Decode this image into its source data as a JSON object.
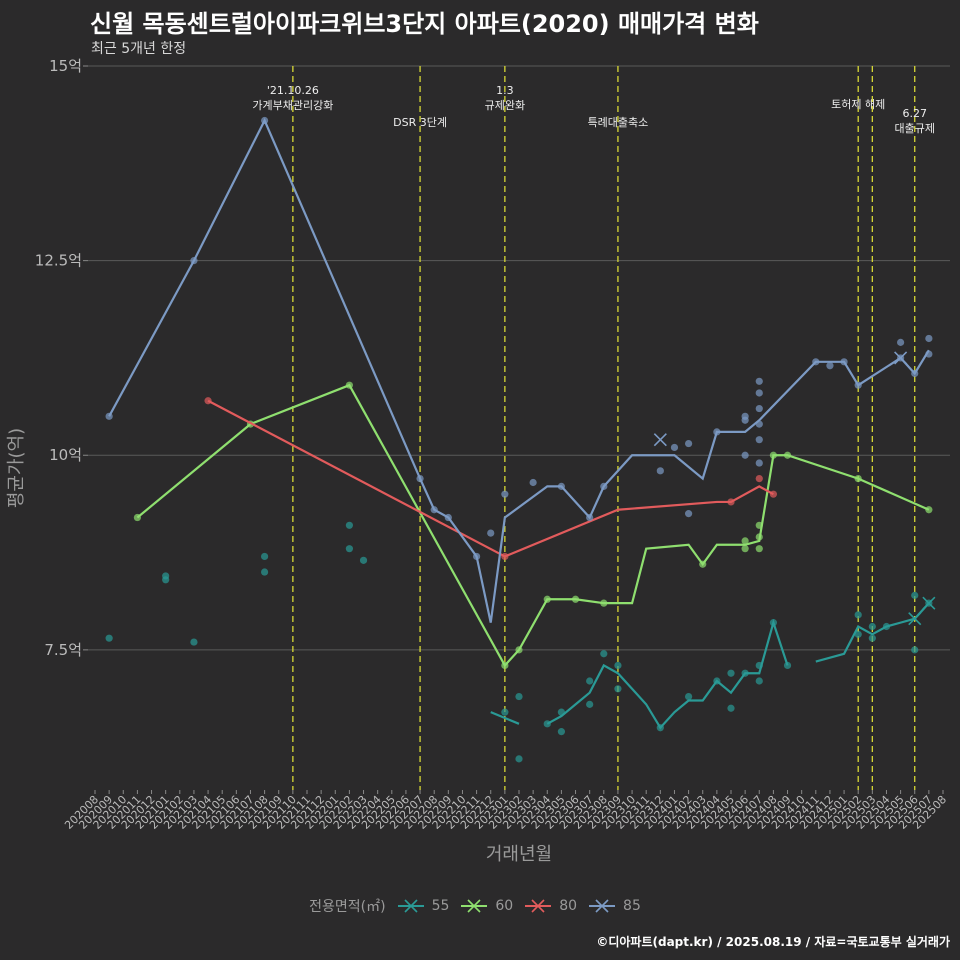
{
  "title": "신월 목동센트럴아이파크위브3단지 아파트(2020) 매매가격 변화",
  "subtitle": "최근 5개년 한정",
  "caption": "©디아파트(dapt.kr) / 2025.08.19 / 자료=국토교통부 실거래가",
  "chart_data": {
    "type": "line",
    "xlabel": "거래년월",
    "ylabel": "평균가(억)",
    "ylim": [
      5.7,
      15
    ],
    "yticks": [
      7.5,
      10,
      12.5,
      15
    ],
    "ytick_labels": [
      "7.5억",
      "10억",
      "12.5억",
      "15억"
    ],
    "categories": [
      "202008",
      "202009",
      "202010",
      "202011",
      "202012",
      "202101",
      "202102",
      "202103",
      "202104",
      "202105",
      "202106",
      "202107",
      "202108",
      "202109",
      "202110",
      "202111",
      "202112",
      "202201",
      "202202",
      "202203",
      "202204",
      "202205",
      "202206",
      "202207",
      "202208",
      "202209",
      "202210",
      "202211",
      "202212",
      "202301",
      "202302",
      "202303",
      "202304",
      "202305",
      "202306",
      "202307",
      "202308",
      "202309",
      "202310",
      "202311",
      "202312",
      "202401",
      "202402",
      "202403",
      "202404",
      "202405",
      "202406",
      "202407",
      "202408",
      "202409",
      "202410",
      "202411",
      "202412",
      "202501",
      "202502",
      "202503",
      "202504",
      "202505",
      "202506",
      "202507",
      "202508"
    ],
    "legend_title": "전용면적(㎡)",
    "series": [
      {
        "name": "55",
        "color": "#2a9a96",
        "line": [
          [
            "202212",
            6.7
          ],
          [
            "202302",
            6.55
          ],
          null,
          [
            "202304",
            6.55
          ],
          [
            "202305",
            6.65
          ],
          [
            "202306",
            6.8
          ],
          [
            "202307",
            6.95
          ],
          [
            "202308",
            7.3
          ],
          [
            "202309",
            7.2
          ],
          [
            "202311",
            6.8
          ],
          [
            "202312",
            6.5
          ],
          [
            "202401",
            6.7
          ],
          [
            "202402",
            6.85
          ],
          [
            "202403",
            6.85
          ],
          [
            "202404",
            7.1
          ],
          [
            "202405",
            6.95
          ],
          [
            "202406",
            7.2
          ],
          [
            "202407",
            7.2
          ],
          [
            "202408",
            7.85
          ],
          [
            "202409",
            7.3
          ],
          null,
          [
            "202411",
            7.35
          ],
          [
            "202501",
            7.45
          ],
          [
            "202502",
            7.8
          ],
          [
            "202503",
            7.7
          ],
          [
            "202504",
            7.8
          ],
          [
            "202505",
            7.85
          ],
          [
            "202506",
            7.9
          ],
          [
            "202507",
            8.1
          ]
        ],
        "points": [
          [
            "202009",
            7.65
          ],
          [
            "202101",
            8.45
          ],
          [
            "202101",
            8.4
          ],
          [
            "202103",
            7.6
          ],
          [
            "202108",
            8.7
          ],
          [
            "202108",
            8.5
          ],
          [
            "202202",
            9.1
          ],
          [
            "202202",
            8.8
          ],
          [
            "202203",
            8.65
          ],
          [
            "202301",
            6.7
          ],
          [
            "202302",
            6.9
          ],
          [
            "202302",
            6.1
          ],
          [
            "202304",
            6.55
          ],
          [
            "202305",
            6.7
          ],
          [
            "202305",
            6.45
          ],
          [
            "202307",
            7.1
          ],
          [
            "202307",
            6.8
          ],
          [
            "202308",
            7.45
          ],
          [
            "202309",
            7.0
          ],
          [
            "202309",
            7.3
          ],
          [
            "202312",
            6.5
          ],
          [
            "202402",
            6.9
          ],
          [
            "202404",
            7.1
          ],
          [
            "202405",
            7.2
          ],
          [
            "202405",
            6.75
          ],
          [
            "202406",
            7.2
          ],
          [
            "202407",
            7.1
          ],
          [
            "202407",
            7.3
          ],
          [
            "202408",
            7.85
          ],
          [
            "202409",
            7.3
          ],
          [
            "202502",
            7.95
          ],
          [
            "202502",
            7.7
          ],
          [
            "202503",
            7.8
          ],
          [
            "202503",
            7.65
          ],
          [
            "202504",
            7.8
          ],
          [
            "202506",
            8.2
          ],
          [
            "202506",
            7.5
          ],
          [
            "202507",
            8.1
          ]
        ],
        "cross": [
          [
            "202506",
            7.9
          ],
          [
            "202507",
            8.1
          ]
        ]
      },
      {
        "name": "60",
        "color": "#8fdf6f",
        "line": [
          [
            "202011",
            9.2
          ],
          [
            "202107",
            10.4
          ],
          [
            "202202",
            10.9
          ],
          [
            "202301",
            7.3
          ],
          [
            "202302",
            7.5
          ],
          [
            "202304",
            8.15
          ],
          [
            "202306",
            8.15
          ],
          [
            "202308",
            8.1
          ],
          [
            "202310",
            8.1
          ],
          [
            "202311",
            8.8
          ],
          [
            "202402",
            8.85
          ],
          [
            "202403",
            8.6
          ],
          [
            "202404",
            8.85
          ],
          [
            "202406",
            8.85
          ],
          [
            "202407",
            8.9
          ],
          [
            "202408",
            10.0
          ],
          [
            "202409",
            10.0
          ],
          [
            "202502",
            9.7
          ],
          [
            "202507",
            9.3
          ]
        ],
        "points": [
          [
            "202011",
            9.2
          ],
          [
            "202107",
            10.4
          ],
          [
            "202202",
            10.9
          ],
          [
            "202301",
            7.3
          ],
          [
            "202302",
            7.5
          ],
          [
            "202304",
            8.15
          ],
          [
            "202306",
            8.15
          ],
          [
            "202308",
            8.1
          ],
          [
            "202403",
            8.6
          ],
          [
            "202406",
            8.9
          ],
          [
            "202406",
            8.8
          ],
          [
            "202407",
            8.95
          ],
          [
            "202407",
            9.1
          ],
          [
            "202407",
            8.8
          ],
          [
            "202408",
            10.0
          ],
          [
            "202409",
            10.0
          ],
          [
            "202502",
            9.7
          ],
          [
            "202507",
            9.3
          ]
        ],
        "cross": []
      },
      {
        "name": "80",
        "color": "#e25b5c",
        "line": [
          [
            "202104",
            10.7
          ],
          [
            "202301",
            8.7
          ],
          [
            "202309",
            9.3
          ],
          [
            "202404",
            9.4
          ],
          [
            "202405",
            9.4
          ],
          [
            "202407",
            9.6
          ],
          [
            "202408",
            9.5
          ]
        ],
        "points": [
          [
            "202104",
            10.7
          ],
          [
            "202301",
            8.7
          ],
          [
            "202405",
            9.4
          ],
          [
            "202407",
            9.7
          ],
          [
            "202408",
            9.5
          ]
        ],
        "cross": []
      },
      {
        "name": "85",
        "color": "#7c9ac4",
        "line": [
          [
            "202009",
            10.5
          ],
          [
            "202103",
            12.5
          ],
          [
            "202108",
            14.3
          ],
          [
            "202207",
            9.7
          ],
          [
            "202208",
            9.3
          ],
          [
            "202209",
            9.2
          ],
          [
            "202211",
            8.7
          ],
          [
            "202212",
            7.85
          ],
          [
            "202301",
            9.2
          ],
          [
            "202304",
            9.6
          ],
          [
            "202305",
            9.6
          ],
          [
            "202307",
            9.2
          ],
          [
            "202308",
            9.6
          ],
          [
            "202310",
            10.0
          ],
          [
            "202401",
            10.0
          ],
          [
            "202403",
            9.7
          ],
          [
            "202404",
            10.3
          ],
          [
            "202406",
            10.3
          ],
          [
            "202407",
            10.45
          ],
          [
            "202411",
            11.2
          ],
          [
            "202412",
            11.2
          ],
          [
            "202501",
            11.2
          ],
          [
            "202502",
            10.9
          ],
          [
            "202505",
            11.25
          ],
          [
            "202506",
            11.05
          ],
          [
            "202507",
            11.35
          ]
        ],
        "points": [
          [
            "202009",
            10.5
          ],
          [
            "202103",
            12.5
          ],
          [
            "202108",
            14.3
          ],
          [
            "202207",
            9.7
          ],
          [
            "202208",
            9.3
          ],
          [
            "202209",
            9.2
          ],
          [
            "202211",
            8.7
          ],
          [
            "202212",
            9.0
          ],
          [
            "202301",
            9.5
          ],
          [
            "202303",
            9.65
          ],
          [
            "202305",
            9.6
          ],
          [
            "202307",
            9.2
          ],
          [
            "202308",
            9.6
          ],
          [
            "202312",
            9.8
          ],
          [
            "202401",
            10.1
          ],
          [
            "202402",
            9.25
          ],
          [
            "202402",
            10.15
          ],
          [
            "202404",
            10.3
          ],
          [
            "202406",
            10.5
          ],
          [
            "202406",
            10.0
          ],
          [
            "202406",
            10.45
          ],
          [
            "202407",
            10.95
          ],
          [
            "202407",
            10.8
          ],
          [
            "202407",
            10.6
          ],
          [
            "202407",
            10.4
          ],
          [
            "202407",
            10.2
          ],
          [
            "202407",
            9.9
          ],
          [
            "202411",
            11.2
          ],
          [
            "202412",
            11.15
          ],
          [
            "202501",
            11.2
          ],
          [
            "202502",
            10.9
          ],
          [
            "202505",
            11.45
          ],
          [
            "202505",
            11.25
          ],
          [
            "202506",
            11.05
          ],
          [
            "202507",
            11.5
          ],
          [
            "202507",
            11.3
          ]
        ],
        "cross": [
          [
            "202312",
            10.2
          ],
          [
            "202505",
            11.25
          ]
        ]
      }
    ],
    "events": [
      {
        "month": "202110",
        "label": [
          "'21.10.26",
          "가계부채관리강화"
        ],
        "row": 0
      },
      {
        "month": "202207",
        "label": [
          "DSR 3단계"
        ],
        "row": 2
      },
      {
        "month": "202301",
        "label": [
          "1.3",
          "규제완화"
        ],
        "row": 0
      },
      {
        "month": "202309",
        "label": [
          "특례대출축소"
        ],
        "row": 2
      },
      {
        "month": "202502",
        "label": [
          "토허제 해제"
        ],
        "row": 1
      },
      {
        "month": "202503",
        "label": [],
        "row": 1
      },
      {
        "month": "202506",
        "label": [
          "6.27",
          "대출규제"
        ],
        "row": 3
      }
    ],
    "event_line_color": "#d8d835",
    "grid": true
  }
}
